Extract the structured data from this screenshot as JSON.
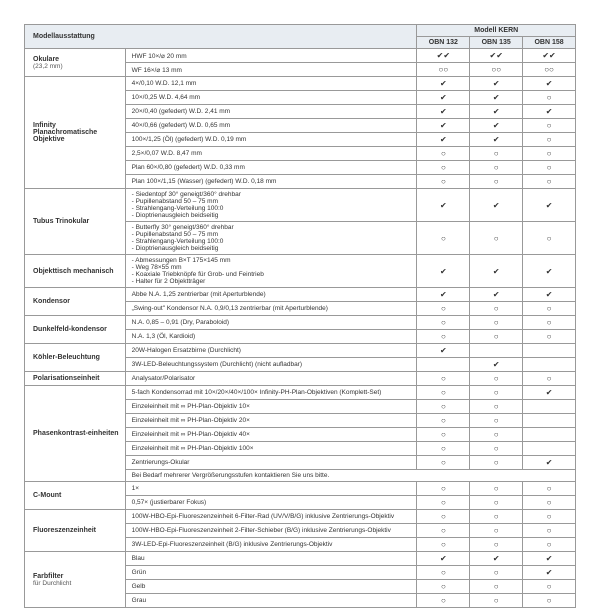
{
  "header": {
    "left": "Modellausstattung",
    "kern": "Modell KERN",
    "models": [
      "OBN 132",
      "OBN 135",
      "OBN 158"
    ]
  },
  "marks": {
    "check": "✔",
    "dblcheck": "✔✔",
    "empty": "○○",
    "o": "○"
  },
  "categories": [
    {
      "name": "Okulare",
      "sub": "(23,2 mm)",
      "rows": [
        {
          "d": "HWF 10×/⌀ 20 mm",
          "v": [
            "✔✔",
            "✔✔",
            "✔✔"
          ]
        },
        {
          "d": "WF 16×/⌀ 13 mm",
          "v": [
            "○○",
            "○○",
            "○○"
          ]
        }
      ]
    },
    {
      "name": "Infinity Planachromatische Objektive",
      "rows": [
        {
          "d": "4×/0,10 W.D. 12,1 mm",
          "v": [
            "✔",
            "✔",
            "✔"
          ]
        },
        {
          "d": "10×/0,25 W.D. 4,64 mm",
          "v": [
            "✔",
            "✔",
            "○"
          ]
        },
        {
          "d": "20×/0,40 (gefedert) W.D. 2,41 mm",
          "v": [
            "✔",
            "✔",
            "✔"
          ]
        },
        {
          "d": "40×/0,66 (gefedert) W.D. 0,65 mm",
          "v": [
            "✔",
            "✔",
            "○"
          ]
        },
        {
          "d": "100×/1,25 (Öl) (gefedert) W.D. 0,19 mm",
          "v": [
            "✔",
            "✔",
            "○"
          ]
        },
        {
          "d": "2,5×/0,07 W.D. 8,47 mm",
          "v": [
            "○",
            "○",
            "○"
          ]
        },
        {
          "d": "Plan 60×/0,80 (gefedert) W.D. 0,33 mm",
          "v": [
            "○",
            "○",
            "○"
          ]
        },
        {
          "d": "Plan 100×/1,15 (Wasser) (gefedert) W.D. 0,18 mm",
          "v": [
            "○",
            "○",
            "○"
          ]
        }
      ]
    },
    {
      "name": "Tubus Trinokular",
      "rows": [
        {
          "d": "- Siedentopf 30° geneigt/360° drehbar\n- Pupillenabstand 50 – 75 mm\n- Strahlengang-Verteilung 100:0\n- Dioptrienausgleich beidseitig",
          "v": [
            "✔",
            "✔",
            "✔"
          ]
        },
        {
          "d": "- Butterfly 30° geneigt/360° drehbar\n- Pupillenabstand 50 – 75 mm\n- Strahlengang-Verteilung 100:0\n- Dioptrienausgleich beidseitig",
          "v": [
            "○",
            "○",
            "○"
          ]
        }
      ]
    },
    {
      "name": "Objekttisch mechanisch",
      "rows": [
        {
          "d": "- Abmessungen B×T 175×145 mm\n- Weg 78×55 mm\n- Koaxiale Triebknöpfe für Grob- und Feintrieb\n- Halter für 2 Objektträger",
          "v": [
            "✔",
            "✔",
            "✔"
          ]
        }
      ]
    },
    {
      "name": "Kondensor",
      "rows": [
        {
          "d": "Abbe N.A. 1,25 zentrierbar (mit Aperturblende)",
          "v": [
            "✔",
            "✔",
            "✔"
          ]
        },
        {
          "d": "„Swing-out\" Kondensor N.A. 0,9/0,13 zentrierbar (mit Aperturblende)",
          "v": [
            "○",
            "○",
            "○"
          ]
        }
      ]
    },
    {
      "name": "Dunkelfeld-kondensor",
      "rows": [
        {
          "d": "N.A. 0,85 – 0,91 (Dry, Paraboloid)",
          "v": [
            "○",
            "○",
            "○"
          ]
        },
        {
          "d": "N.A. 1,3 (Öl, Kardioid)",
          "v": [
            "○",
            "○",
            "○"
          ]
        }
      ]
    },
    {
      "name": "Köhler-Beleuchtung",
      "rows": [
        {
          "d": "20W-Halogen Ersatzbirne (Durchlicht)",
          "v": [
            "✔",
            "",
            ""
          ]
        },
        {
          "d": "3W-LED-Beleuchtungssystem (Durchlicht) (nicht aufladbar)",
          "v": [
            "",
            "✔",
            ""
          ]
        }
      ]
    },
    {
      "name": "Polarisationseinheit",
      "rows": [
        {
          "d": "Analysator/Polarisator",
          "v": [
            "○",
            "○",
            "○"
          ]
        }
      ]
    },
    {
      "name": "Phasenkontrast-einheiten",
      "contact": "Bei Bedarf mehrerer Vergrößerungsstufen kontaktieren Sie uns bitte.",
      "rows": [
        {
          "d": "5-fach Kondensorrad mit 10×/20×/40×/100× Infinity-PH-Plan-Objektiven (Komplett-Set)",
          "v": [
            "○",
            "○",
            "✔"
          ]
        },
        {
          "d": "Einzeleinheit mit ∞ PH-Plan-Objektiv 10×",
          "v": [
            "○",
            "○",
            ""
          ]
        },
        {
          "d": "Einzeleinheit mit ∞ PH-Plan-Objektiv 20×",
          "v": [
            "○",
            "○",
            ""
          ]
        },
        {
          "d": "Einzeleinheit mit ∞ PH-Plan-Objektiv 40×",
          "v": [
            "○",
            "○",
            ""
          ]
        },
        {
          "d": "Einzeleinheit mit ∞ PH-Plan-Objektiv 100×",
          "v": [
            "○",
            "○",
            ""
          ]
        },
        {
          "d": "Zentrierungs-Okular",
          "v": [
            "○",
            "○",
            "✔"
          ]
        }
      ]
    },
    {
      "name": "C-Mount",
      "rows": [
        {
          "d": "1×",
          "v": [
            "○",
            "○",
            "○"
          ]
        },
        {
          "d": "0,57× (justierbarer Fokus)",
          "v": [
            "○",
            "○",
            "○"
          ]
        }
      ]
    },
    {
      "name": "Fluoreszenzeinheit",
      "rows": [
        {
          "d": "100W-HBO-Epi-Fluoreszenzeinheit 6-Filter-Rad (UV/V/B/G) inklusive Zentrierungs-Objektiv",
          "v": [
            "○",
            "○",
            "○"
          ]
        },
        {
          "d": "100W-HBO-Epi-Fluoreszenzeinheit 2-Filter-Schieber (B/G) inklusive Zentrierungs-Objektiv",
          "v": [
            "○",
            "○",
            "○"
          ]
        },
        {
          "d": "3W-LED-Epi-Fluoreszenzeinheit (B/G) inklusive Zentrierungs-Objektiv",
          "v": [
            "○",
            "○",
            "○"
          ]
        }
      ]
    },
    {
      "name": "Farbfilter",
      "sub": "für Durchlicht",
      "rows": [
        {
          "d": "Blau",
          "v": [
            "✔",
            "✔",
            "✔"
          ]
        },
        {
          "d": "Grün",
          "v": [
            "○",
            "○",
            "✔"
          ]
        },
        {
          "d": "Gelb",
          "v": [
            "○",
            "○",
            "○"
          ]
        },
        {
          "d": "Grau",
          "v": [
            "○",
            "○",
            "○"
          ]
        }
      ]
    }
  ]
}
